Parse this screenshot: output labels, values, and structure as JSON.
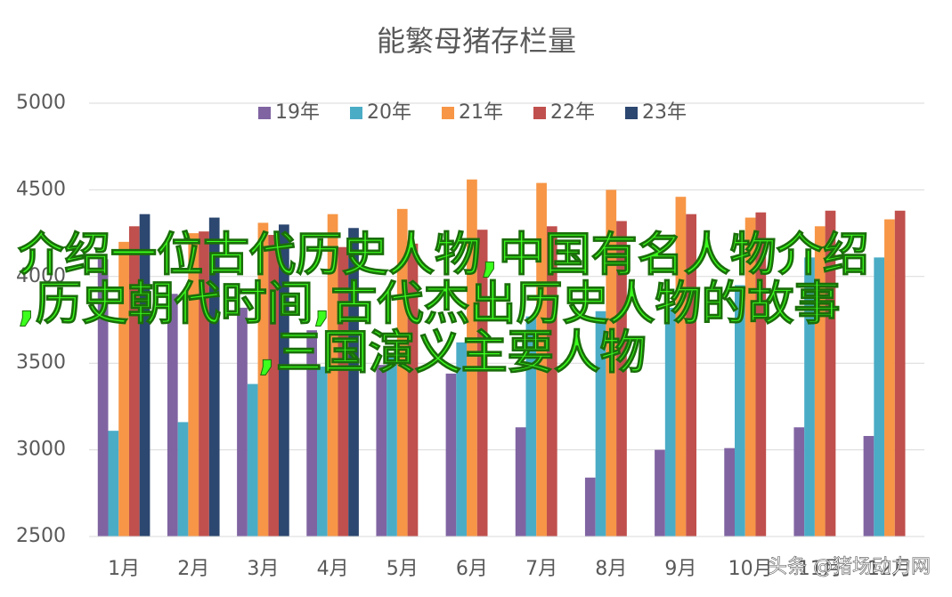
{
  "chart_data": {
    "type": "bar",
    "title": "能繁母猪存栏量",
    "categories": [
      "1月",
      "2月",
      "3月",
      "4月",
      "5月",
      "6月",
      "7月",
      "8月",
      "9月",
      "10月",
      "11月",
      "12月"
    ],
    "series": [
      {
        "name": "19年",
        "color": "#8064a2",
        "values": [
          4100,
          3900,
          3820,
          3690,
          3490,
          3440,
          3130,
          2840,
          3000,
          3010,
          3130,
          3080
        ]
      },
      {
        "name": "20年",
        "color": "#4bacc6",
        "values": [
          3110,
          3160,
          3380,
          3480,
          3540,
          3620,
          3770,
          3800,
          3820,
          3950,
          4110,
          4110
        ]
      },
      {
        "name": "21年",
        "color": "#f79646",
        "values": [
          4200,
          4250,
          4310,
          4360,
          4390,
          4560,
          4540,
          4500,
          4460,
          4340,
          4290,
          4330
        ]
      },
      {
        "name": "22年",
        "color": "#c0504d",
        "values": [
          4290,
          4260,
          4240,
          4170,
          4190,
          4270,
          4290,
          4320,
          4360,
          4370,
          4380,
          4380
        ]
      },
      {
        "name": "23年",
        "color": "#2c4770",
        "values": [
          4360,
          4340,
          4300,
          4280,
          null,
          null,
          null,
          null,
          null,
          null,
          null,
          null
        ]
      }
    ],
    "ylim": [
      2500,
      5000
    ],
    "yticks": [
      2500,
      3000,
      3500,
      4000,
      4500,
      5000
    ],
    "grid": true,
    "legend": "top",
    "annotations": [
      "介绍一位古代历史人物,中国有名人物介绍",
      ",历史朝代时间,古代杰出历史人物的故事",
      ",三国演义主要人物"
    ],
    "watermark": "头条 @猪场动力网"
  }
}
